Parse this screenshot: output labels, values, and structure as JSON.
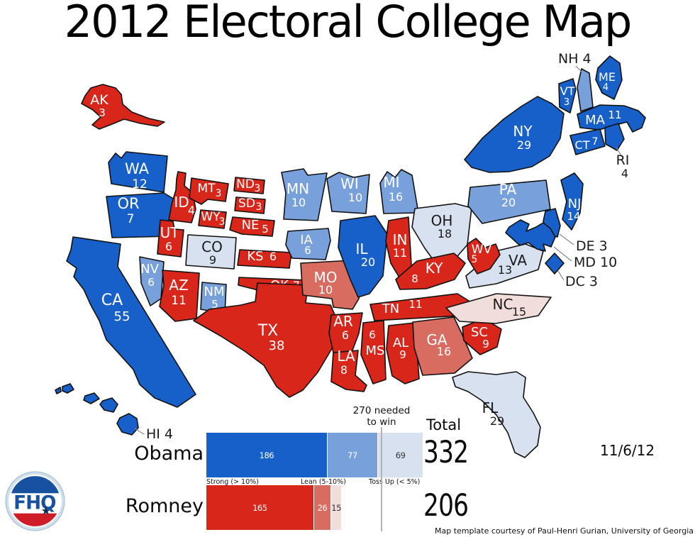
{
  "title": "2012 Electoral College Map",
  "date": "11/6/12",
  "credit": "Map template courtesy of Paul-Henri Gurian, University of Georgia",
  "logo": {
    "text": "FHQ",
    "star": "★",
    "blue": "#17519f",
    "red": "#cf1d27",
    "ring_color": "#cfe0ec",
    "star_color": "#0e2d56"
  },
  "colors": {
    "strong_dem": "#1760c9",
    "lean_dem": "#78a1dc",
    "tossup_dem": "#d7e1ef",
    "strong_rep": "#d8261b",
    "lean_rep": "#d96c60",
    "tossup_rep": "#f1ddda",
    "needed_line": "#b3b3b3",
    "outline": "#111111"
  },
  "summary": {
    "needed": {
      "line1": "270 needed",
      "line2": "to win",
      "value": 270
    },
    "total_header": "Total",
    "legend": [
      "Strong (> 10%)",
      "Lean (5-10%)",
      "Toss Up (< 5%)"
    ],
    "candidates": [
      {
        "name": "Obama",
        "party": "dem",
        "strong": 186,
        "lean": 77,
        "tossup": 69,
        "total": 332
      },
      {
        "name": "Romney",
        "party": "rep",
        "strong": 165,
        "lean": 26,
        "tossup": 15,
        "total": 206
      }
    ]
  },
  "map": {
    "states": [
      {
        "abbr": "AK",
        "ev": 3,
        "rating": "strong_rep"
      },
      {
        "abbr": "HI",
        "ev": 4,
        "rating": "strong_dem"
      },
      {
        "abbr": "WA",
        "ev": 12,
        "rating": "strong_dem"
      },
      {
        "abbr": "OR",
        "ev": 7,
        "rating": "strong_dem"
      },
      {
        "abbr": "CA",
        "ev": 55,
        "rating": "strong_dem"
      },
      {
        "abbr": "NV",
        "ev": 6,
        "rating": "lean_dem"
      },
      {
        "abbr": "ID",
        "ev": 4,
        "rating": "strong_rep"
      },
      {
        "abbr": "MT",
        "ev": 3,
        "rating": "strong_rep"
      },
      {
        "abbr": "WY",
        "ev": 3,
        "rating": "strong_rep"
      },
      {
        "abbr": "UT",
        "ev": 6,
        "rating": "strong_rep"
      },
      {
        "abbr": "CO",
        "ev": 9,
        "rating": "tossup_dem"
      },
      {
        "abbr": "AZ",
        "ev": 11,
        "rating": "strong_rep"
      },
      {
        "abbr": "NM",
        "ev": 5,
        "rating": "lean_dem"
      },
      {
        "abbr": "ND",
        "ev": 3,
        "rating": "strong_rep"
      },
      {
        "abbr": "SD",
        "ev": 3,
        "rating": "strong_rep"
      },
      {
        "abbr": "NE",
        "ev": 5,
        "rating": "strong_rep"
      },
      {
        "abbr": "KS",
        "ev": 6,
        "rating": "strong_rep"
      },
      {
        "abbr": "OK",
        "ev": 7,
        "rating": "strong_rep"
      },
      {
        "abbr": "TX",
        "ev": 38,
        "rating": "strong_rep"
      },
      {
        "abbr": "MN",
        "ev": 10,
        "rating": "lean_dem"
      },
      {
        "abbr": "IA",
        "ev": 6,
        "rating": "lean_dem"
      },
      {
        "abbr": "MO",
        "ev": 10,
        "rating": "lean_rep"
      },
      {
        "abbr": "AR",
        "ev": 6,
        "rating": "strong_rep"
      },
      {
        "abbr": "LA",
        "ev": 8,
        "rating": "strong_rep"
      },
      {
        "abbr": "WI",
        "ev": 10,
        "rating": "lean_dem"
      },
      {
        "abbr": "IL",
        "ev": 20,
        "rating": "strong_dem"
      },
      {
        "abbr": "MI",
        "ev": 16,
        "rating": "lean_dem"
      },
      {
        "abbr": "IN",
        "ev": 11,
        "rating": "strong_rep"
      },
      {
        "abbr": "OH",
        "ev": 18,
        "rating": "tossup_dem"
      },
      {
        "abbr": "KY",
        "ev": 8,
        "rating": "strong_rep"
      },
      {
        "abbr": "TN",
        "ev": 11,
        "rating": "strong_rep"
      },
      {
        "abbr": "MS",
        "ev": 6,
        "rating": "strong_rep"
      },
      {
        "abbr": "AL",
        "ev": 9,
        "rating": "strong_rep"
      },
      {
        "abbr": "GA",
        "ev": 16,
        "rating": "lean_rep"
      },
      {
        "abbr": "SC",
        "ev": 9,
        "rating": "strong_rep"
      },
      {
        "abbr": "NC",
        "ev": 15,
        "rating": "tossup_rep"
      },
      {
        "abbr": "VA",
        "ev": 13,
        "rating": "tossup_dem"
      },
      {
        "abbr": "WV",
        "ev": 5,
        "rating": "strong_rep"
      },
      {
        "abbr": "FL",
        "ev": 29,
        "rating": "tossup_dem"
      },
      {
        "abbr": "PA",
        "ev": 20,
        "rating": "lean_dem"
      },
      {
        "abbr": "NY",
        "ev": 29,
        "rating": "strong_dem"
      },
      {
        "abbr": "NJ",
        "ev": 14,
        "rating": "strong_dem"
      },
      {
        "abbr": "VT",
        "ev": 3,
        "rating": "strong_dem"
      },
      {
        "abbr": "NH",
        "ev": 4,
        "rating": "lean_dem"
      },
      {
        "abbr": "ME",
        "ev": 4,
        "rating": "strong_dem"
      },
      {
        "abbr": "MA",
        "ev": 11,
        "rating": "strong_dem"
      },
      {
        "abbr": "RI",
        "ev": 4,
        "rating": "strong_dem"
      },
      {
        "abbr": "CT",
        "ev": 7,
        "rating": "strong_dem"
      },
      {
        "abbr": "DE",
        "ev": 3,
        "rating": "strong_dem"
      },
      {
        "abbr": "MD",
        "ev": 10,
        "rating": "strong_dem"
      },
      {
        "abbr": "DC",
        "ev": 3,
        "rating": "strong_dem"
      }
    ]
  }
}
